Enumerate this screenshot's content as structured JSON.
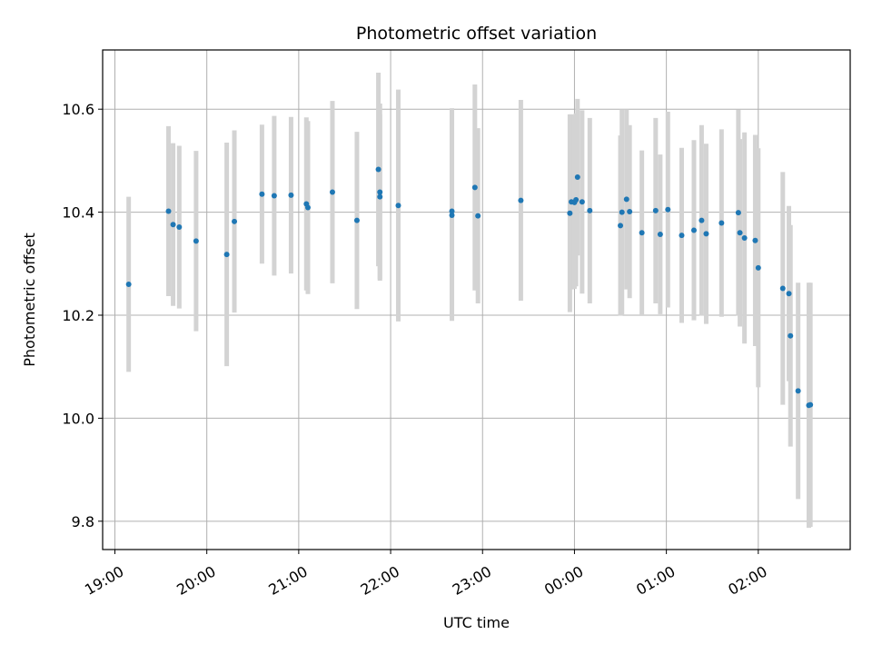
{
  "chart_data": {
    "type": "scatter",
    "title": "Photometric offset variation",
    "xlabel": "UTC time",
    "ylabel": "Photometric offset",
    "grid": true,
    "xlim": [
      "18:52",
      "27:00"
    ],
    "ylim": [
      9.745,
      10.715
    ],
    "x_ticks": [
      "19:00",
      "20:00",
      "21:00",
      "22:00",
      "23:00",
      "00:00",
      "01:00",
      "02:00"
    ],
    "y_ticks": [
      "9.8",
      "10.0",
      "10.2",
      "10.4",
      "10.6"
    ],
    "y_tick_values": [
      9.8,
      10.0,
      10.2,
      10.4,
      10.6
    ],
    "colors": {
      "points": "#1f77b4",
      "error_bars": "#d3d3d3",
      "grid": "#b0b0b0"
    },
    "series": [
      {
        "x": [
          "19:09",
          "19:35",
          "19:38",
          "19:42",
          "19:53",
          "20:13",
          "20:18",
          "20:36",
          "20:44",
          "20:55",
          "21:05",
          "21:06",
          "21:22",
          "21:38",
          "21:52",
          "21:53",
          "21:53",
          "22:05",
          "22:40",
          "22:40",
          "22:55",
          "22:57",
          "23:25",
          "23:57",
          "23:58",
          "24:00",
          "24:01",
          "24:02",
          "24:05",
          "24:10",
          "24:30",
          "24:31",
          "24:34",
          "24:36",
          "24:44",
          "24:53",
          "24:56",
          "25:01",
          "25:10",
          "25:18",
          "25:23",
          "25:26",
          "25:36",
          "25:47",
          "25:48",
          "25:51",
          "25:58",
          "26:00",
          "26:16",
          "26:20",
          "26:21",
          "26:26",
          "26:33",
          "26:34"
        ],
        "y": [
          10.26,
          10.402,
          10.376,
          10.371,
          10.344,
          10.318,
          10.382,
          10.435,
          10.432,
          10.433,
          10.416,
          10.409,
          10.439,
          10.384,
          10.483,
          10.439,
          10.43,
          10.413,
          10.394,
          10.402,
          10.448,
          10.393,
          10.423,
          10.398,
          10.42,
          10.419,
          10.424,
          10.468,
          10.42,
          10.403,
          10.374,
          10.4,
          10.425,
          10.401,
          10.36,
          10.403,
          10.357,
          10.405,
          10.355,
          10.365,
          10.384,
          10.358,
          10.379,
          10.399,
          10.36,
          10.35,
          10.345,
          10.292,
          10.252,
          10.242,
          10.16,
          10.053,
          10.025,
          10.026
        ],
        "err": [
          0.17,
          0.165,
          0.158,
          0.158,
          0.175,
          0.217,
          0.177,
          0.135,
          0.155,
          0.152,
          0.168,
          0.168,
          0.177,
          0.172,
          0.188,
          0.172,
          0.16,
          0.225,
          0.205,
          0.2,
          0.2,
          0.17,
          0.195,
          0.192,
          0.17,
          0.168,
          0.168,
          0.152,
          0.178,
          0.18,
          0.175,
          0.2,
          0.175,
          0.168,
          0.16,
          0.18,
          0.155,
          0.19,
          0.17,
          0.175,
          0.185,
          0.175,
          0.182,
          0.2,
          0.182,
          0.205,
          0.205,
          0.232,
          0.226,
          0.17,
          0.215,
          0.21,
          0.238,
          0.237
        ]
      }
    ]
  }
}
